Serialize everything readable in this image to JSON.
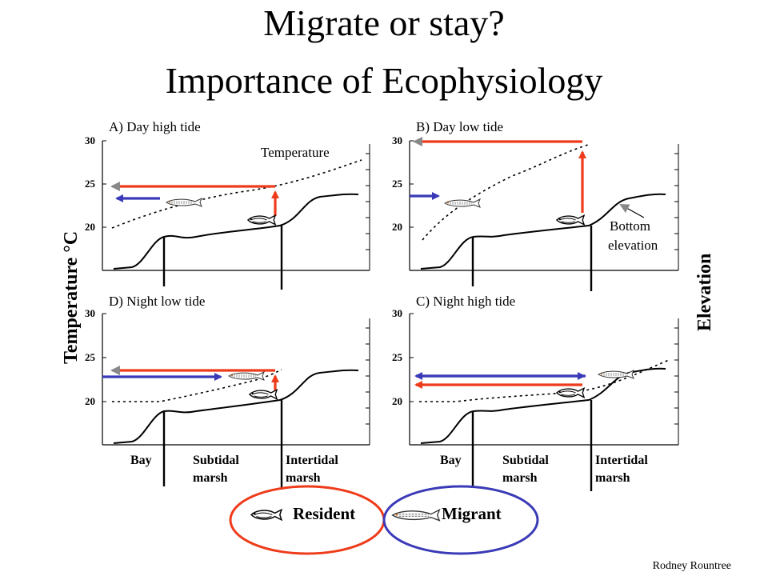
{
  "slide": {
    "title_line1": "Migrate or stay?",
    "title_line2": "Importance of Ecophysiology",
    "y_axis_left_label": "Temperature °C",
    "y_axis_right_label": "Elevation",
    "author": "Rodney Rountree"
  },
  "panels": [
    {
      "id": "A",
      "title": "A) Day high tide",
      "annotation": "Temperature"
    },
    {
      "id": "B",
      "title": "B) Day low tide",
      "annotation": "Bottom elevation",
      "annotation_line1": "Bottom",
      "annotation_line2": "elevation"
    },
    {
      "id": "D",
      "title": "D) Night low tide"
    },
    {
      "id": "C",
      "title": "C) Night high tide"
    }
  ],
  "y_ticks": [
    "30",
    "25",
    "20"
  ],
  "zones": {
    "bay": "Bay",
    "subtidal_line1": "Subtidal",
    "subtidal_line2": "marsh",
    "intertidal_line1": "Intertidal",
    "intertidal_line2": "marsh"
  },
  "legend": {
    "resident": "Resident",
    "migrant": "Migrant",
    "resident_color": "#ee3b1a",
    "migrant_color": "#3a3ab8"
  },
  "colors": {
    "resident_arrow": "#ee3b1a",
    "migrant_arrow": "#3a3ab8",
    "arrowhead_gray": "#888888"
  },
  "icons": {
    "resident_fish": "resident-fish-icon",
    "migrant_fish": "migrant-fish-icon"
  }
}
